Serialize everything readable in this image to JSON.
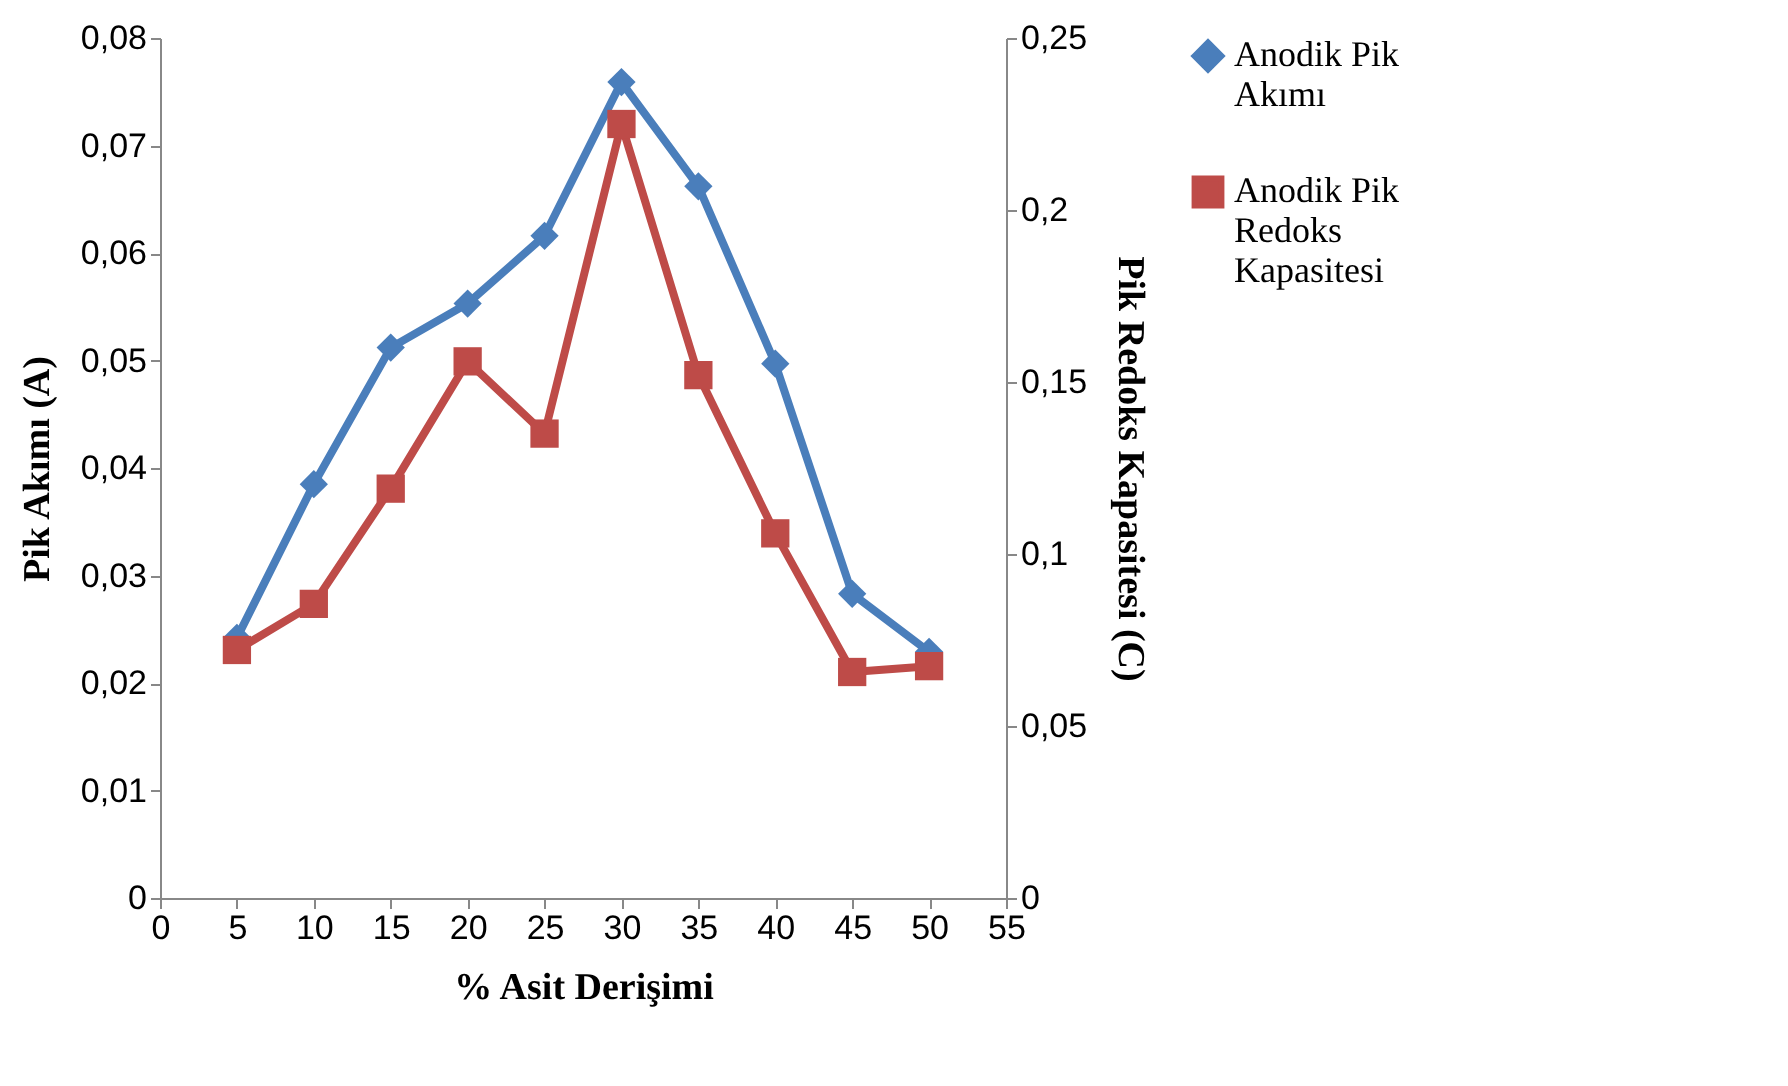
{
  "chart_data": {
    "type": "line",
    "xlabel": "% Asit Derişimi",
    "ylabel": "Pik Akımı (A)",
    "y2label": "Pik Redoks Kapasitesi (C)",
    "x": [
      5,
      10,
      15,
      20,
      25,
      30,
      35,
      40,
      45,
      50
    ],
    "series": [
      {
        "name": "Anodik Pik Akımı",
        "color": "#4a7ebb",
        "marker": "diamond",
        "values": [
          0.0242,
          0.0385,
          0.0512,
          0.0553,
          0.0616,
          0.0759,
          0.0662,
          0.0497,
          0.0283,
          0.0229
        ]
      },
      {
        "name": "Anodik Pik Redoks Kapasitesi",
        "color": "#be4b48",
        "marker": "square",
        "axis": "y2",
        "values": [
          0.0721,
          0.0855,
          0.119,
          0.156,
          0.135,
          0.225,
          0.152,
          0.106,
          0.0657,
          0.0674
        ]
      }
    ],
    "xlim": [
      0,
      55
    ],
    "xticks": [
      0,
      5,
      10,
      15,
      20,
      25,
      30,
      35,
      40,
      45,
      50,
      55
    ],
    "ylim": [
      0,
      0.08
    ],
    "yticks": [
      0,
      {
        "value": 0.01,
        "label": "0,01"
      },
      {
        "value": 0.02,
        "label": "0,02"
      },
      {
        "value": 0.03,
        "label": "0,03"
      },
      {
        "value": 0.04,
        "label": "0,04"
      },
      {
        "value": 0.05,
        "label": "0,05"
      },
      {
        "value": 0.06,
        "label": "0,06"
      },
      {
        "value": 0.07,
        "label": "0,07"
      },
      {
        "value": 0.08,
        "label": "0,08"
      }
    ],
    "y2lim": [
      0,
      0.25
    ],
    "y2ticks": [
      0,
      {
        "value": 0.05,
        "label": "0,05"
      },
      {
        "value": 0.1,
        "label": "0,1"
      },
      {
        "value": 0.15,
        "label": "0,15"
      },
      {
        "value": 0.2,
        "label": "0,2"
      },
      {
        "value": 0.25,
        "label": "0,25"
      }
    ],
    "grid": false,
    "legend": "right",
    "line_style": "solid"
  }
}
